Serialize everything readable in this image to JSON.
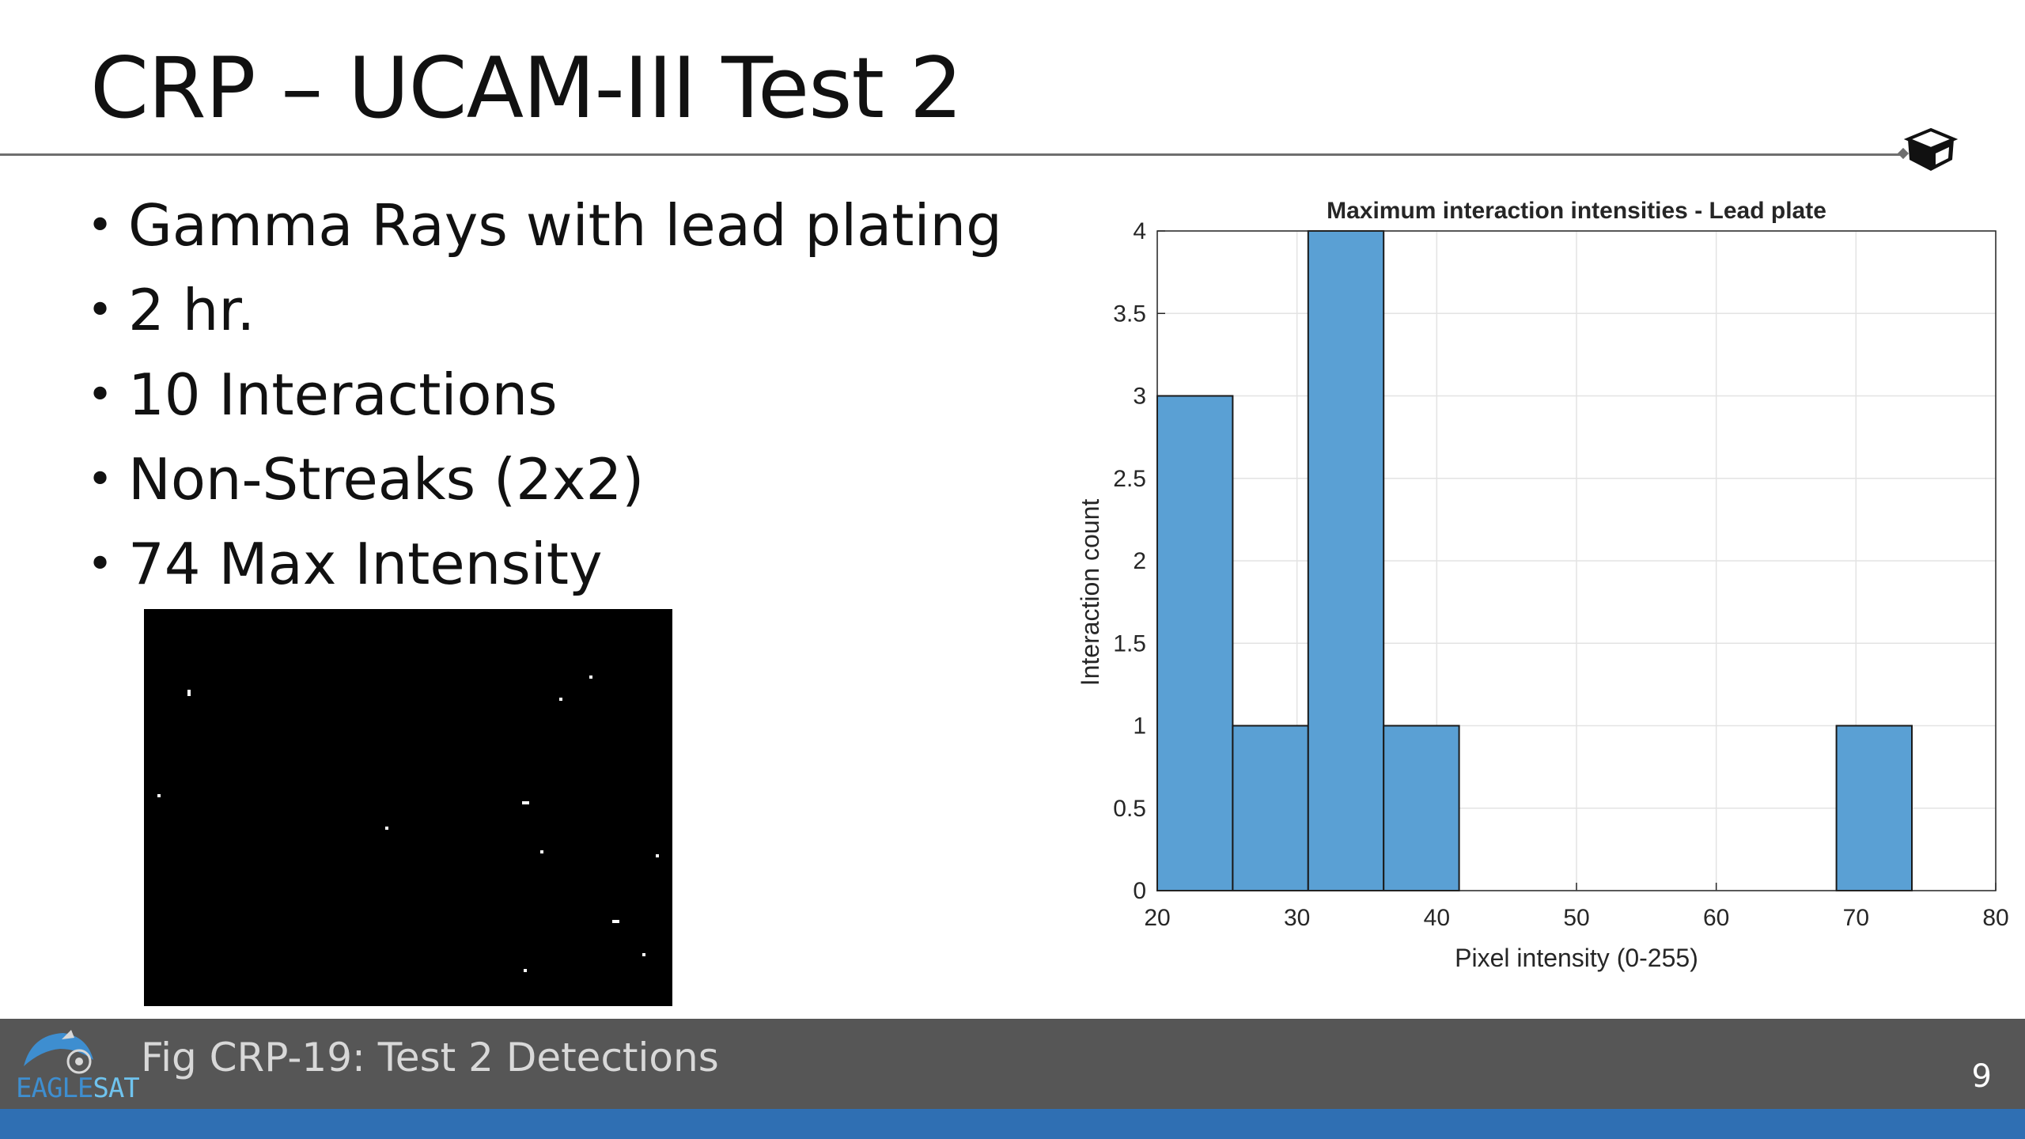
{
  "slide": {
    "title": "CRP – UCAM-III Test 2",
    "bullets": [
      "Gamma Rays with lead plating",
      "2 hr.",
      "10 Interactions",
      "Non-Streaks (2x2)",
      "74 Max Intensity"
    ],
    "bullet_symbol": "•"
  },
  "footer": {
    "caption": "Fig CRP-19: Test 2 Detections",
    "page_number": "9",
    "logo_text_part1": "EAGLE",
    "logo_text_part2": "SAT"
  },
  "colors": {
    "bar_fill": "#5aa0d4",
    "footer_bar": "#565656",
    "footer_strip": "#2f6fb3"
  },
  "chart_data": {
    "type": "bar",
    "title": "Maximum interaction intensities - Lead plate",
    "xlabel": "Pixel intensity (0-255)",
    "ylabel": "Interaction count",
    "xlim": [
      20,
      80
    ],
    "ylim": [
      0,
      4
    ],
    "xticks": [
      "20",
      "30",
      "40",
      "50",
      "60",
      "70",
      "80"
    ],
    "yticks": [
      "0",
      "0.5",
      "1",
      "1.5",
      "2",
      "2.5",
      "3",
      "3.5",
      "4"
    ],
    "grid": true,
    "bins": [
      {
        "start": 20.0,
        "end": 25.4,
        "value": 3
      },
      {
        "start": 25.4,
        "end": 30.8,
        "value": 1
      },
      {
        "start": 30.8,
        "end": 36.2,
        "value": 4
      },
      {
        "start": 36.2,
        "end": 41.6,
        "value": 1
      },
      {
        "start": 68.6,
        "end": 74.0,
        "value": 1
      }
    ]
  }
}
